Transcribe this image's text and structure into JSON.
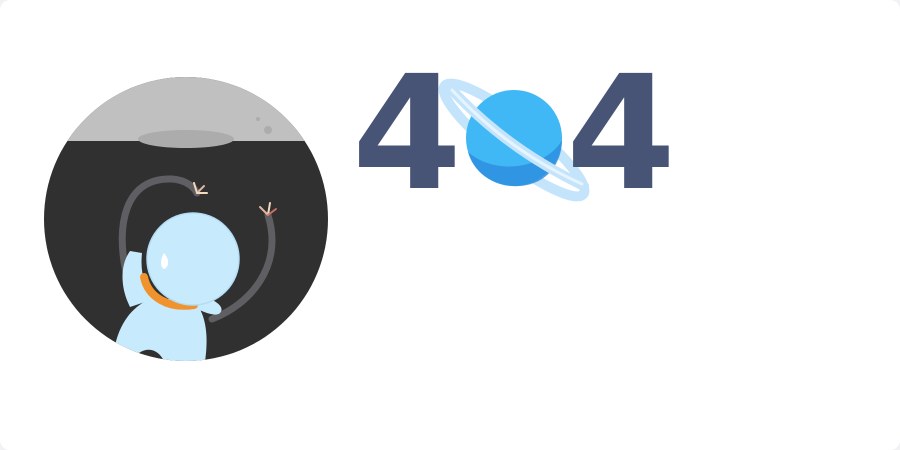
{
  "error_page": {
    "code_first_digit": "4",
    "code_last_digit": "4",
    "colors": {
      "digits": "#475475",
      "planet": "#40b8f5",
      "planet_shadow": "#2e8fe0",
      "ring": "#c3e4fb",
      "moon": "#c0c0c0",
      "space": "#303030",
      "astronaut": "#c8eafd",
      "collar": "#f0932c"
    },
    "icons": {
      "illustration": "astronaut-in-space-icon",
      "planet": "ringed-planet-icon"
    }
  }
}
